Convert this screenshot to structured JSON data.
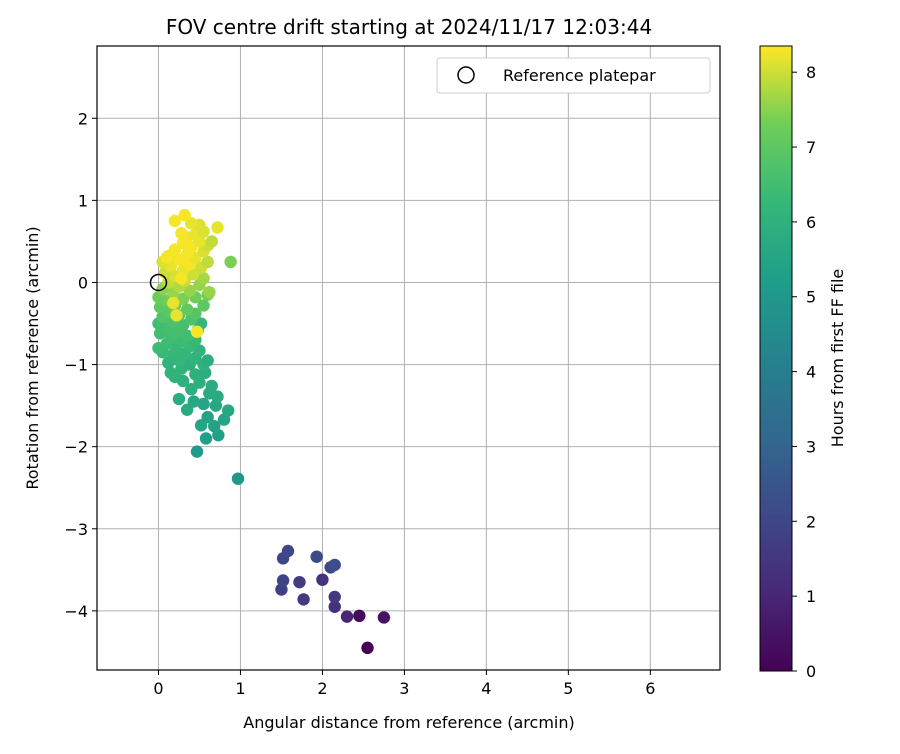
{
  "chart_data": {
    "type": "scatter",
    "title": "FOV centre drift starting at 2024/11/17 12:03:44",
    "xlabel": "Angular distance from reference (arcmin)",
    "ylabel": "Rotation from reference (arcmin)",
    "xlim": [
      -0.75,
      6.85
    ],
    "ylim": [
      -4.72,
      2.88
    ],
    "xticks": [
      0,
      1,
      2,
      3,
      4,
      5,
      6
    ],
    "yticks": [
      -4,
      -3,
      -2,
      -1,
      0,
      1,
      2
    ],
    "xtick_labels": [
      "0",
      "1",
      "2",
      "3",
      "4",
      "5",
      "6"
    ],
    "ytick_labels": [
      "−4",
      "−3",
      "−2",
      "−1",
      "0",
      "1",
      "2"
    ],
    "grid": true,
    "legend": {
      "position": "top-right",
      "entries": [
        "Reference platepar"
      ]
    },
    "colorbar": {
      "label": "Hours from first FF file",
      "colormap": "viridis",
      "range": [
        0,
        8.35
      ],
      "ticks": [
        0,
        1,
        2,
        3,
        4,
        5,
        6,
        7,
        8
      ],
      "tick_labels": [
        "0",
        "1",
        "2",
        "3",
        "4",
        "5",
        "6",
        "7",
        "8"
      ]
    },
    "reference_point": {
      "x": 0,
      "y": 0
    },
    "series": [
      {
        "points": [
          {
            "x": 2.55,
            "y": -4.45,
            "h": 0.05
          },
          {
            "x": 2.45,
            "y": -4.06,
            "h": 0.25
          },
          {
            "x": 2.75,
            "y": -4.08,
            "h": 0.5
          },
          {
            "x": 2.3,
            "y": -4.07,
            "h": 1.0
          },
          {
            "x": 2.15,
            "y": -3.95,
            "h": 1.3
          },
          {
            "x": 2.15,
            "y": -3.83,
            "h": 1.5
          },
          {
            "x": 2.0,
            "y": -3.62,
            "h": 1.4
          },
          {
            "x": 1.77,
            "y": -3.86,
            "h": 1.6
          },
          {
            "x": 1.72,
            "y": -3.65,
            "h": 1.7
          },
          {
            "x": 1.5,
            "y": -3.74,
            "h": 1.8
          },
          {
            "x": 1.52,
            "y": -3.63,
            "h": 1.9
          },
          {
            "x": 1.52,
            "y": -3.36,
            "h": 2.0
          },
          {
            "x": 1.58,
            "y": -3.27,
            "h": 2.0
          },
          {
            "x": 1.93,
            "y": -3.34,
            "h": 2.1
          },
          {
            "x": 2.1,
            "y": -3.47,
            "h": 2.1
          },
          {
            "x": 2.15,
            "y": -3.44,
            "h": 2.2
          },
          {
            "x": 0.97,
            "y": -2.39,
            "h": 5.0
          },
          {
            "x": 0.47,
            "y": -2.06,
            "h": 5.1
          },
          {
            "x": 0.58,
            "y": -1.9,
            "h": 5.3
          },
          {
            "x": 0.73,
            "y": -1.86,
            "h": 5.3
          },
          {
            "x": 0.68,
            "y": -1.75,
            "h": 5.4
          },
          {
            "x": 0.52,
            "y": -1.74,
            "h": 5.5
          },
          {
            "x": 0.8,
            "y": -1.67,
            "h": 5.5
          },
          {
            "x": 0.6,
            "y": -1.64,
            "h": 5.4
          },
          {
            "x": 0.85,
            "y": -1.56,
            "h": 5.6
          },
          {
            "x": 0.7,
            "y": -1.5,
            "h": 5.6
          },
          {
            "x": 0.55,
            "y": -1.48,
            "h": 5.5
          },
          {
            "x": 0.35,
            "y": -1.55,
            "h": 5.7
          },
          {
            "x": 0.43,
            "y": -1.45,
            "h": 5.6
          },
          {
            "x": 0.72,
            "y": -1.39,
            "h": 5.7
          },
          {
            "x": 0.25,
            "y": -1.42,
            "h": 5.8
          },
          {
            "x": 0.62,
            "y": -1.35,
            "h": 5.8
          },
          {
            "x": 0.4,
            "y": -1.3,
            "h": 5.9
          },
          {
            "x": 0.65,
            "y": -1.26,
            "h": 5.8
          },
          {
            "x": 0.5,
            "y": -1.22,
            "h": 5.9
          },
          {
            "x": 0.3,
            "y": -1.2,
            "h": 6.0
          },
          {
            "x": 0.2,
            "y": -1.15,
            "h": 6.0
          },
          {
            "x": 0.45,
            "y": -1.12,
            "h": 6.0
          },
          {
            "x": 0.57,
            "y": -1.1,
            "h": 5.9
          },
          {
            "x": 0.15,
            "y": -1.1,
            "h": 6.1
          },
          {
            "x": 0.28,
            "y": -1.05,
            "h": 6.1
          },
          {
            "x": 0.38,
            "y": -1.0,
            "h": 6.0
          },
          {
            "x": 0.55,
            "y": -1.0,
            "h": 6.0
          },
          {
            "x": 0.12,
            "y": -0.98,
            "h": 6.1
          },
          {
            "x": 0.25,
            "y": -0.95,
            "h": 6.2
          },
          {
            "x": 0.45,
            "y": -0.92,
            "h": 6.1
          },
          {
            "x": 0.6,
            "y": -0.95,
            "h": 5.9
          },
          {
            "x": 0.18,
            "y": -0.88,
            "h": 6.2
          },
          {
            "x": 0.32,
            "y": -0.87,
            "h": 6.2
          },
          {
            "x": 0.05,
            "y": -0.85,
            "h": 6.3
          },
          {
            "x": 0.5,
            "y": -0.83,
            "h": 6.1
          },
          {
            "x": 0.22,
            "y": -0.8,
            "h": 6.3
          },
          {
            "x": 0.38,
            "y": -0.78,
            "h": 6.3
          },
          {
            "x": 0.0,
            "y": -0.8,
            "h": 6.4
          },
          {
            "x": 0.1,
            "y": -0.75,
            "h": 6.4
          },
          {
            "x": 0.28,
            "y": -0.72,
            "h": 6.4
          },
          {
            "x": 0.45,
            "y": -0.7,
            "h": 6.3
          },
          {
            "x": 0.15,
            "y": -0.68,
            "h": 6.5
          },
          {
            "x": 0.35,
            "y": -0.65,
            "h": 6.5
          },
          {
            "x": 0.02,
            "y": -0.62,
            "h": 6.5
          },
          {
            "x": 0.22,
            "y": -0.6,
            "h": 6.6
          },
          {
            "x": 0.48,
            "y": -0.58,
            "h": 6.4
          },
          {
            "x": 0.1,
            "y": -0.55,
            "h": 6.6
          },
          {
            "x": 0.3,
            "y": -0.52,
            "h": 6.6
          },
          {
            "x": 0.0,
            "y": -0.5,
            "h": 6.5
          },
          {
            "x": 0.52,
            "y": -0.5,
            "h": 6.2
          },
          {
            "x": 0.18,
            "y": -0.48,
            "h": 6.7
          },
          {
            "x": 0.4,
            "y": -0.45,
            "h": 6.7
          },
          {
            "x": 0.05,
            "y": -0.42,
            "h": 6.8
          },
          {
            "x": 0.25,
            "y": -0.4,
            "h": 6.9
          },
          {
            "x": 0.45,
            "y": -0.38,
            "h": 6.9
          },
          {
            "x": 0.12,
            "y": -0.35,
            "h": 7.0
          },
          {
            "x": 0.35,
            "y": -0.33,
            "h": 7.1
          },
          {
            "x": 0.02,
            "y": -0.3,
            "h": 7.0
          },
          {
            "x": 0.2,
            "y": -0.28,
            "h": 7.2
          },
          {
            "x": 0.55,
            "y": -0.28,
            "h": 7.0
          },
          {
            "x": 0.1,
            "y": -0.22,
            "h": 7.3
          },
          {
            "x": 0.3,
            "y": -0.2,
            "h": 7.4
          },
          {
            "x": 0.0,
            "y": -0.18,
            "h": 7.2
          },
          {
            "x": 0.45,
            "y": -0.18,
            "h": 7.3
          },
          {
            "x": 0.6,
            "y": -0.15,
            "h": 7.3
          },
          {
            "x": 0.18,
            "y": -0.12,
            "h": 7.6
          },
          {
            "x": 0.38,
            "y": -0.1,
            "h": 7.6
          },
          {
            "x": 0.05,
            "y": -0.08,
            "h": 7.5
          },
          {
            "x": 0.62,
            "y": -0.12,
            "h": 7.2
          },
          {
            "x": 0.25,
            "y": -0.05,
            "h": 7.8
          },
          {
            "x": 0.5,
            "y": -0.03,
            "h": 7.6
          },
          {
            "x": 0.12,
            "y": 0.0,
            "h": 7.9
          },
          {
            "x": 0.32,
            "y": 0.02,
            "h": 8.0
          },
          {
            "x": 0.55,
            "y": 0.05,
            "h": 7.7
          },
          {
            "x": 0.2,
            "y": 0.08,
            "h": 8.1
          },
          {
            "x": 0.42,
            "y": 0.1,
            "h": 8.0
          },
          {
            "x": 0.08,
            "y": 0.12,
            "h": 8.0
          },
          {
            "x": 0.3,
            "y": 0.15,
            "h": 8.2
          },
          {
            "x": 0.52,
            "y": 0.18,
            "h": 8.0
          },
          {
            "x": 0.15,
            "y": 0.2,
            "h": 8.2
          },
          {
            "x": 0.38,
            "y": 0.22,
            "h": 8.3
          },
          {
            "x": 0.6,
            "y": 0.25,
            "h": 7.9
          },
          {
            "x": 0.05,
            "y": 0.25,
            "h": 8.1
          },
          {
            "x": 0.25,
            "y": 0.28,
            "h": 8.3
          },
          {
            "x": 0.45,
            "y": 0.3,
            "h": 8.2
          },
          {
            "x": 0.12,
            "y": 0.32,
            "h": 8.2
          },
          {
            "x": 0.35,
            "y": 0.35,
            "h": 8.3
          },
          {
            "x": 0.55,
            "y": 0.38,
            "h": 8.1
          },
          {
            "x": 0.2,
            "y": 0.4,
            "h": 8.3
          },
          {
            "x": 0.4,
            "y": 0.43,
            "h": 8.3
          },
          {
            "x": 0.6,
            "y": 0.45,
            "h": 8.0
          },
          {
            "x": 0.3,
            "y": 0.48,
            "h": 8.3
          },
          {
            "x": 0.5,
            "y": 0.5,
            "h": 8.2
          },
          {
            "x": 0.65,
            "y": 0.5,
            "h": 7.9
          },
          {
            "x": 0.35,
            "y": 0.55,
            "h": 8.3
          },
          {
            "x": 0.45,
            "y": 0.58,
            "h": 8.2
          },
          {
            "x": 0.28,
            "y": 0.6,
            "h": 8.3
          },
          {
            "x": 0.55,
            "y": 0.62,
            "h": 8.1
          },
          {
            "x": 0.72,
            "y": 0.67,
            "h": 8.2
          },
          {
            "x": 0.5,
            "y": 0.7,
            "h": 8.1
          },
          {
            "x": 0.4,
            "y": 0.72,
            "h": 8.2
          },
          {
            "x": 0.2,
            "y": 0.75,
            "h": 8.3
          },
          {
            "x": 0.32,
            "y": 0.82,
            "h": 8.3
          },
          {
            "x": 0.88,
            "y": 0.25,
            "h": 7.4
          },
          {
            "x": 0.62,
            "y": -0.12,
            "h": 7.6
          },
          {
            "x": 0.47,
            "y": -0.6,
            "h": 8.3
          },
          {
            "x": 0.1,
            "y": 0.3,
            "h": 8.3
          },
          {
            "x": 0.18,
            "y": -0.25,
            "h": 8.2
          },
          {
            "x": 0.28,
            "y": 0.05,
            "h": 8.3
          },
          {
            "x": 0.22,
            "y": -0.4,
            "h": 8.2
          }
        ]
      }
    ]
  }
}
